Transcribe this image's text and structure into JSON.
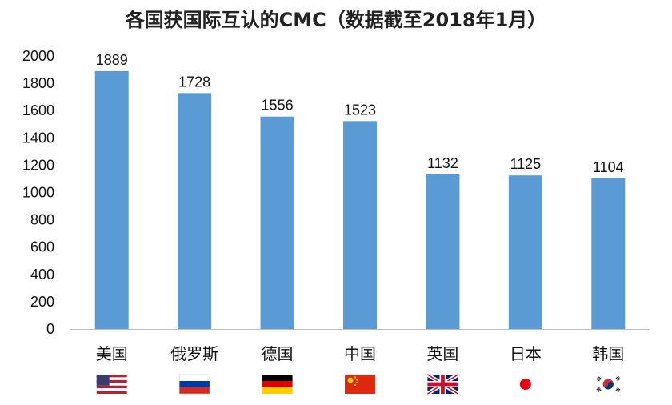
{
  "chart_data": {
    "type": "bar",
    "title": "各国获国际互认的CMC（数据截至2018年1月）",
    "categories": [
      "美国",
      "俄罗斯",
      "德国",
      "中国",
      "英国",
      "日本",
      "韩国"
    ],
    "values": [
      1889,
      1728,
      1556,
      1523,
      1132,
      1125,
      1104
    ],
    "ylim": [
      0,
      2000
    ],
    "yticks": [
      0,
      200,
      400,
      600,
      800,
      1000,
      1200,
      1400,
      1600,
      1800,
      2000
    ],
    "bar_color": "#5b9bd5",
    "grid": false,
    "legend": "none",
    "flag_icons": [
      "usa-flag-icon",
      "russia-flag-icon",
      "germany-flag-icon",
      "china-flag-icon",
      "uk-flag-icon",
      "japan-flag-icon",
      "korea-flag-icon"
    ]
  }
}
